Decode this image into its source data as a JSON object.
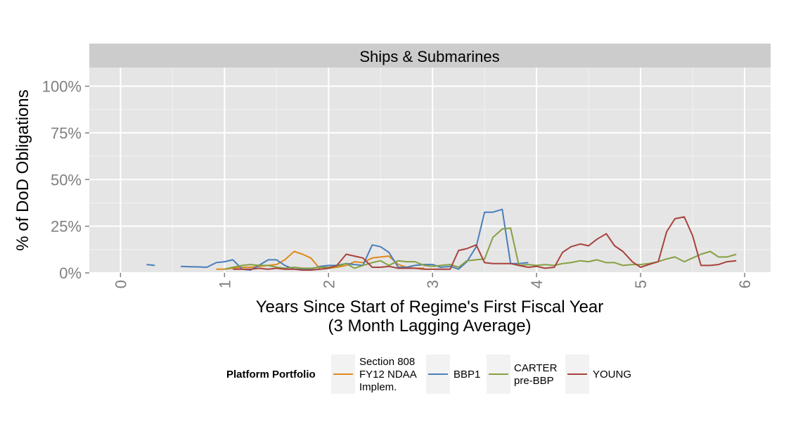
{
  "chart_data": {
    "type": "line",
    "facet_title": "Ships & Submarines",
    "xlabel": "Years Since Start of Regime's First Fiscal Year",
    "xlabel_line2": "(3 Month Lagging Average)",
    "ylabel": "% of DoD Obligations",
    "xlim": [
      -0.3,
      6.25
    ],
    "ylim": [
      0,
      1.1
    ],
    "x_ticks": [
      0,
      1,
      2,
      3,
      4,
      5,
      6
    ],
    "x_tick_labels": [
      "0",
      "1",
      "2",
      "3",
      "4",
      "5",
      "6"
    ],
    "y_ticks": [
      0,
      0.25,
      0.5,
      0.75,
      1.0
    ],
    "y_tick_labels": [
      "0%",
      "25%",
      "50%",
      "75%",
      "100%"
    ],
    "grid": true,
    "legend_position": "bottom",
    "legend_title": "Platform Portfolio",
    "colors": {
      "panel_bg": "#e5e5e5",
      "strip_bg": "#cccccc",
      "grid_major": "#ffffff",
      "grid_minor": "#f2f2f2"
    },
    "series": [
      {
        "name": "Section 808\nFY12 NDAA\nImplem.",
        "color": "#e08a1b",
        "segments": [
          [
            [
              0.92,
              0.02
            ],
            [
              1.0,
              0.02
            ],
            [
              1.08,
              0.025
            ],
            [
              1.17,
              0.03
            ],
            [
              1.25,
              0.03
            ],
            [
              1.33,
              0.035
            ],
            [
              1.42,
              0.04
            ],
            [
              1.5,
              0.045
            ],
            [
              1.58,
              0.07
            ],
            [
              1.67,
              0.115
            ],
            [
              1.75,
              0.1
            ],
            [
              1.83,
              0.08
            ],
            [
              1.92,
              0.02
            ],
            [
              2.0,
              0.025
            ],
            [
              2.08,
              0.03
            ],
            [
              2.17,
              0.04
            ],
            [
              2.25,
              0.06
            ],
            [
              2.33,
              0.055
            ],
            [
              2.42,
              0.08
            ],
            [
              2.5,
              0.085
            ],
            [
              2.58,
              0.09
            ],
            [
              2.67,
              0.045
            ],
            [
              2.75,
              0.03
            ],
            [
              2.83,
              0.025
            ],
            [
              2.92,
              0.025
            ]
          ]
        ]
      },
      {
        "name": "BBP1",
        "color": "#4a7ebb",
        "segments": [
          [
            [
              0.25,
              0.045
            ],
            [
              0.33,
              0.04
            ]
          ],
          [
            [
              0.58,
              0.035
            ],
            [
              0.67,
              0.033
            ],
            [
              0.75,
              0.032
            ],
            [
              0.83,
              0.03
            ],
            [
              0.92,
              0.055
            ],
            [
              1.0,
              0.06
            ],
            [
              1.08,
              0.07
            ],
            [
              1.17,
              0.02
            ],
            [
              1.25,
              0.015
            ],
            [
              1.33,
              0.04
            ],
            [
              1.42,
              0.07
            ],
            [
              1.5,
              0.07
            ],
            [
              1.58,
              0.04
            ],
            [
              1.67,
              0.02
            ],
            [
              1.75,
              0.02
            ],
            [
              1.83,
              0.02
            ],
            [
              1.92,
              0.035
            ],
            [
              2.0,
              0.04
            ],
            [
              2.08,
              0.04
            ],
            [
              2.17,
              0.05
            ],
            [
              2.25,
              0.045
            ],
            [
              2.33,
              0.04
            ],
            [
              2.42,
              0.15
            ],
            [
              2.5,
              0.14
            ],
            [
              2.58,
              0.11
            ],
            [
              2.67,
              0.03
            ],
            [
              2.75,
              0.03
            ],
            [
              2.83,
              0.04
            ],
            [
              2.92,
              0.045
            ],
            [
              3.0,
              0.045
            ],
            [
              3.08,
              0.03
            ],
            [
              3.17,
              0.035
            ],
            [
              3.25,
              0.02
            ],
            [
              3.33,
              0.06
            ],
            [
              3.42,
              0.14
            ],
            [
              3.5,
              0.325
            ],
            [
              3.58,
              0.325
            ],
            [
              3.67,
              0.34
            ],
            [
              3.75,
              0.05
            ],
            [
              3.83,
              0.05
            ],
            [
              3.92,
              0.055
            ]
          ]
        ]
      },
      {
        "name": "CARTER\npre-BBP",
        "color": "#86a042",
        "segments": [
          [
            [
              1.0,
              0.02
            ],
            [
              1.08,
              0.03
            ],
            [
              1.17,
              0.04
            ],
            [
              1.25,
              0.045
            ],
            [
              1.33,
              0.04
            ],
            [
              1.42,
              0.04
            ],
            [
              1.5,
              0.03
            ],
            [
              1.58,
              0.025
            ],
            [
              1.67,
              0.03
            ],
            [
              1.75,
              0.025
            ],
            [
              1.83,
              0.025
            ],
            [
              1.92,
              0.03
            ],
            [
              2.0,
              0.03
            ],
            [
              2.08,
              0.035
            ],
            [
              2.17,
              0.05
            ],
            [
              2.25,
              0.025
            ],
            [
              2.33,
              0.04
            ],
            [
              2.42,
              0.055
            ],
            [
              2.5,
              0.065
            ],
            [
              2.58,
              0.04
            ],
            [
              2.67,
              0.065
            ],
            [
              2.75,
              0.06
            ],
            [
              2.83,
              0.06
            ],
            [
              2.92,
              0.04
            ],
            [
              3.0,
              0.035
            ],
            [
              3.08,
              0.04
            ],
            [
              3.17,
              0.045
            ],
            [
              3.25,
              0.03
            ],
            [
              3.33,
              0.065
            ],
            [
              3.42,
              0.07
            ],
            [
              3.5,
              0.075
            ],
            [
              3.58,
              0.19
            ],
            [
              3.67,
              0.235
            ],
            [
              3.75,
              0.24
            ],
            [
              3.83,
              0.04
            ],
            [
              3.92,
              0.045
            ],
            [
              4.0,
              0.04
            ],
            [
              4.08,
              0.045
            ],
            [
              4.17,
              0.04
            ],
            [
              4.25,
              0.05
            ],
            [
              4.33,
              0.055
            ],
            [
              4.42,
              0.065
            ],
            [
              4.5,
              0.06
            ],
            [
              4.58,
              0.07
            ],
            [
              4.67,
              0.055
            ],
            [
              4.75,
              0.055
            ],
            [
              4.83,
              0.04
            ],
            [
              4.92,
              0.045
            ],
            [
              5.0,
              0.045
            ],
            [
              5.08,
              0.05
            ],
            [
              5.17,
              0.06
            ],
            [
              5.25,
              0.075
            ],
            [
              5.33,
              0.085
            ],
            [
              5.42,
              0.06
            ],
            [
              5.5,
              0.08
            ],
            [
              5.58,
              0.1
            ],
            [
              5.67,
              0.115
            ],
            [
              5.75,
              0.085
            ],
            [
              5.83,
              0.085
            ],
            [
              5.92,
              0.1
            ]
          ]
        ]
      },
      {
        "name": "YOUNG",
        "color": "#a8423c",
        "segments": [
          [
            [
              1.08,
              0.02
            ],
            [
              1.17,
              0.02
            ],
            [
              1.25,
              0.02
            ],
            [
              1.33,
              0.025
            ],
            [
              1.42,
              0.02
            ],
            [
              1.5,
              0.025
            ],
            [
              1.58,
              0.02
            ],
            [
              1.67,
              0.02
            ],
            [
              1.75,
              0.015
            ],
            [
              1.83,
              0.015
            ],
            [
              1.92,
              0.02
            ],
            [
              2.0,
              0.025
            ],
            [
              2.08,
              0.04
            ],
            [
              2.17,
              0.1
            ],
            [
              2.25,
              0.09
            ],
            [
              2.33,
              0.08
            ],
            [
              2.42,
              0.03
            ],
            [
              2.5,
              0.03
            ],
            [
              2.58,
              0.035
            ],
            [
              2.67,
              0.025
            ],
            [
              2.75,
              0.025
            ],
            [
              2.83,
              0.025
            ],
            [
              2.92,
              0.02
            ],
            [
              3.0,
              0.02
            ],
            [
              3.08,
              0.02
            ],
            [
              3.17,
              0.02
            ],
            [
              3.25,
              0.12
            ],
            [
              3.33,
              0.13
            ],
            [
              3.42,
              0.15
            ],
            [
              3.5,
              0.055
            ],
            [
              3.58,
              0.05
            ],
            [
              3.67,
              0.05
            ],
            [
              3.75,
              0.05
            ],
            [
              3.83,
              0.04
            ],
            [
              3.92,
              0.03
            ],
            [
              4.0,
              0.035
            ],
            [
              4.08,
              0.025
            ],
            [
              4.17,
              0.03
            ],
            [
              4.25,
              0.11
            ],
            [
              4.33,
              0.14
            ],
            [
              4.42,
              0.155
            ],
            [
              4.5,
              0.145
            ],
            [
              4.58,
              0.18
            ],
            [
              4.67,
              0.21
            ],
            [
              4.75,
              0.145
            ],
            [
              4.83,
              0.115
            ],
            [
              4.92,
              0.06
            ],
            [
              5.0,
              0.03
            ],
            [
              5.08,
              0.045
            ],
            [
              5.17,
              0.06
            ],
            [
              5.25,
              0.22
            ],
            [
              5.33,
              0.29
            ],
            [
              5.42,
              0.3
            ],
            [
              5.5,
              0.2
            ],
            [
              5.58,
              0.04
            ],
            [
              5.67,
              0.04
            ],
            [
              5.75,
              0.045
            ],
            [
              5.83,
              0.06
            ],
            [
              5.92,
              0.065
            ]
          ]
        ]
      }
    ]
  }
}
